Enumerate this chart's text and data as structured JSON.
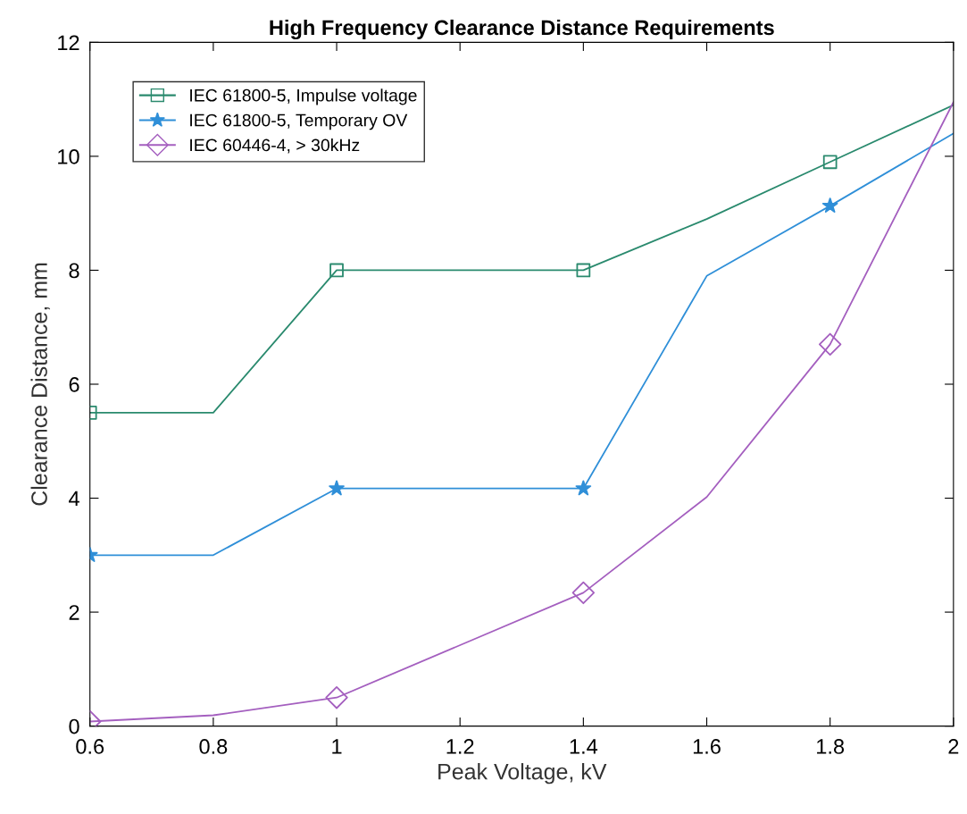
{
  "chart_data": {
    "type": "line",
    "title": "High Frequency Clearance Distance Requirements",
    "xlabel": "Peak Voltage, kV",
    "ylabel": "Clearance Distance, mm",
    "x": [
      0.6,
      0.8,
      1.0,
      1.4,
      1.6,
      1.8,
      2.0
    ],
    "series": [
      {
        "name": "IEC 61800-5, Impulse voltage",
        "color": "#2a8a6e",
        "values": [
          5.5,
          5.5,
          8,
          8,
          8.9,
          9.9,
          10.9
        ]
      },
      {
        "name": "IEC 61800-5, Temporary OV",
        "color": "#2f8fd8",
        "values": [
          3,
          3,
          4.17,
          4.17,
          7.9,
          9.13,
          10.4
        ]
      },
      {
        "name": "IEC 60446-4, > 30kHz",
        "color": "#a45fbf",
        "values": [
          0.08,
          0.19,
          0.5,
          2.34,
          4.02,
          6.7,
          10.95
        ]
      },
      {
        "type": "scatter",
        "marker": "square",
        "color": "#2a8a6e",
        "x": [
          0.6,
          1.0,
          1.4,
          1.8
        ],
        "values": [
          5.5,
          8,
          8,
          9.9
        ]
      },
      {
        "type": "scatter",
        "marker": "star",
        "color": "#2f8fd8",
        "x": [
          0.6,
          1.0,
          1.4,
          1.8
        ],
        "values": [
          3,
          4.17,
          4.17,
          9.13
        ]
      },
      {
        "type": "scatter",
        "marker": "diamond",
        "color": "#a45fbf",
        "x": [
          0.6,
          1.0,
          1.4,
          1.8
        ],
        "values": [
          0.08,
          0.5,
          2.34,
          6.7
        ]
      }
    ],
    "xlim": [
      0.6,
      2
    ],
    "xticks": [
      0.6,
      0.8,
      {
        "value": 1,
        "label": "1"
      },
      1.2,
      1.4,
      1.6,
      1.8,
      {
        "value": 2,
        "label": "2"
      }
    ],
    "ylim": [
      0,
      12
    ],
    "yticks": [
      0,
      2,
      4,
      6,
      8,
      10,
      12
    ],
    "grid": false,
    "legend": "top left",
    "line_style": "solid"
  }
}
